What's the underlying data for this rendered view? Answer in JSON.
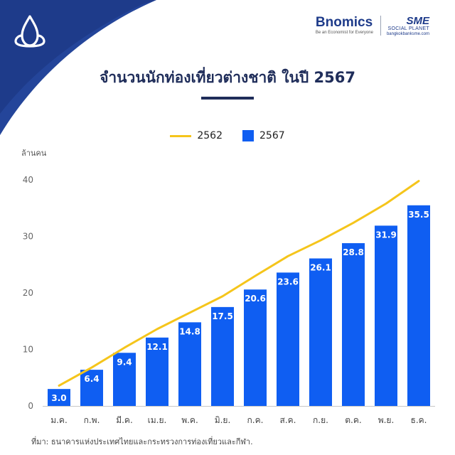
{
  "brand": {
    "bnomics_name": "Bnomics",
    "bnomics_tagline": "Be an Economist for Everyone",
    "sme_name": "SME",
    "sme_sub": "SOCIAL PLANET",
    "sme_url": "bangkokbanksme.com"
  },
  "title": "จำนวนนักท่องเที่ยวต่างชาติ ในปี 2567",
  "unit": "ล้านคน",
  "source": "ที่มา: ธนาคารแห่งประเทศไทยและกระทรวงการท่องเที่ยวและกีฬา.",
  "colors": {
    "bar": "#0f5ef2",
    "line": "#f5c51b",
    "corner": "#1e3b8a",
    "title": "#1f2d5a"
  },
  "icons": {
    "corner_logo": "lotus-icon"
  },
  "chart_data": {
    "type": "bar",
    "categories": [
      "ม.ค.",
      "ก.พ.",
      "มี.ค.",
      "เม.ย.",
      "พ.ค.",
      "มิ.ย.",
      "ก.ค.",
      "ส.ค.",
      "ก.ย.",
      "ต.ค.",
      "พ.ย.",
      "ธ.ค."
    ],
    "series": [
      {
        "name": "2567",
        "type": "bar",
        "values": [
          3.0,
          6.4,
          9.4,
          12.1,
          14.8,
          17.5,
          20.6,
          23.6,
          26.1,
          28.8,
          31.9,
          35.5
        ]
      },
      {
        "name": "2562",
        "type": "line",
        "values": [
          3.6,
          6.8,
          10.3,
          13.6,
          16.5,
          19.4,
          23.0,
          26.5,
          29.3,
          32.4,
          35.8,
          39.8
        ]
      }
    ],
    "ylim": [
      0,
      40
    ],
    "yticks": [
      0,
      10,
      20,
      30,
      40
    ],
    "ylabel": "ล้านคน",
    "legend": "top-center",
    "grid": false
  }
}
